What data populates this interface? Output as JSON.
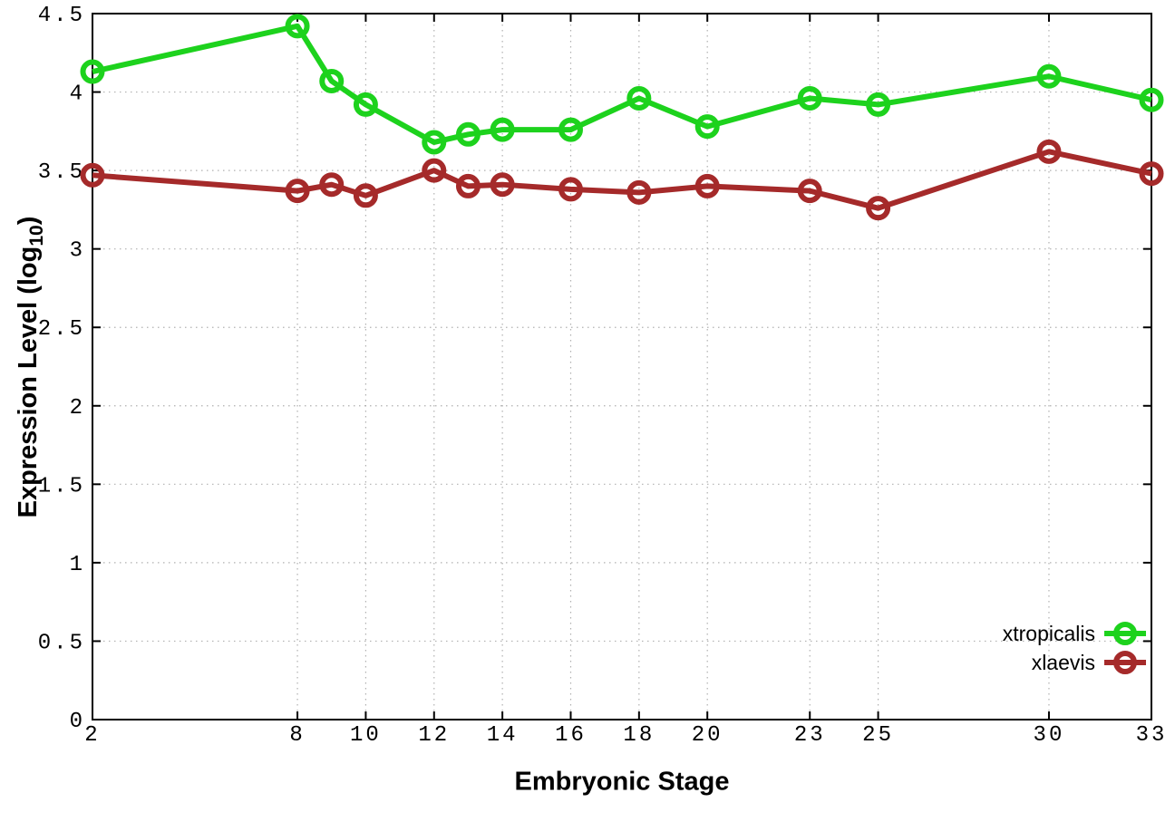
{
  "chart_data": {
    "type": "line",
    "title": "",
    "xlabel": "Embryonic Stage",
    "ylabel": "Expression Level (log10)",
    "ylabel_parts": {
      "base": "Expression Level (log",
      "sub": "10",
      "close": ")"
    },
    "x": [
      2,
      8,
      9,
      10,
      12,
      13,
      14,
      16,
      18,
      20,
      23,
      25,
      30,
      33
    ],
    "series": [
      {
        "name": "xtropicalis",
        "color": "#1dd21d",
        "marker": "open-circle",
        "values": [
          4.13,
          4.42,
          4.07,
          3.92,
          3.68,
          3.73,
          3.76,
          3.76,
          3.96,
          3.78,
          3.96,
          3.92,
          4.1,
          3.95
        ]
      },
      {
        "name": "xlaevis",
        "color": "#a52a2a",
        "marker": "open-circle",
        "values": [
          3.47,
          3.37,
          3.41,
          3.34,
          3.5,
          3.4,
          3.41,
          3.38,
          3.36,
          3.4,
          3.37,
          3.26,
          3.62,
          3.48
        ]
      }
    ],
    "xlim": [
      2,
      33
    ],
    "ylim": [
      0,
      4.5
    ],
    "xticks": [
      2,
      8,
      10,
      12,
      14,
      16,
      18,
      20,
      23,
      25,
      30,
      33
    ],
    "xtick_labels": [
      "2",
      "8",
      "10",
      "12",
      "14",
      "16",
      "18",
      "20",
      "23",
      "25",
      "30",
      "33"
    ],
    "yticks": [
      0,
      0.5,
      1,
      1.5,
      2,
      2.5,
      3,
      3.5,
      4,
      4.5
    ],
    "ytick_labels": [
      "0",
      "0.5",
      "1",
      "1.5",
      "2",
      "2.5",
      "3",
      "3.5",
      "4",
      "4.5"
    ],
    "grid": true,
    "legend_position": "inside-bottom-right",
    "legend": [
      "xtropicalis",
      "xlaevis"
    ]
  },
  "colors": {
    "background": "#ffffff",
    "border": "#000000",
    "grid": "#b0b0b0",
    "text": "#000000",
    "series_green": "#1dd21d",
    "series_red": "#a52a2a"
  }
}
